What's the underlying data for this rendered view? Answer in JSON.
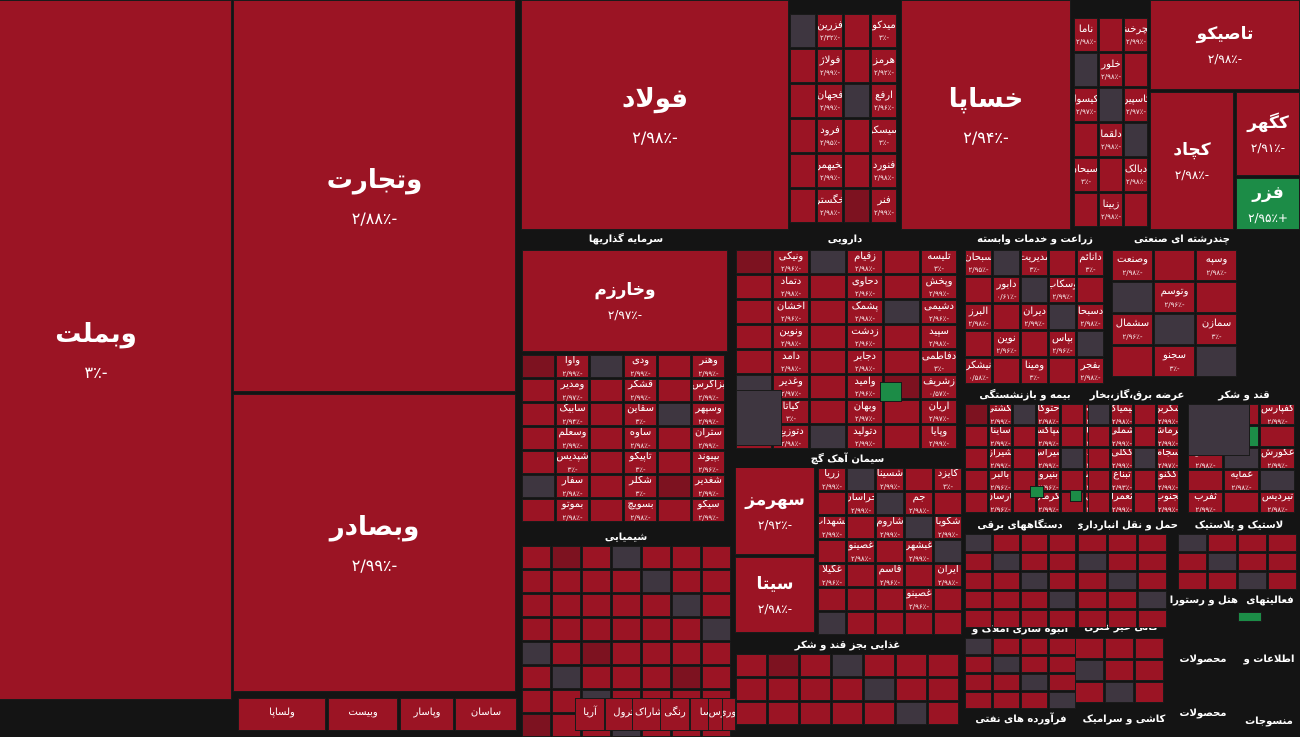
{
  "chart_data": {
    "type": "treemap",
    "title": "",
    "colors": {
      "negative": "#9b1424",
      "positive": "#1c8c47",
      "neutral": "#3e3640",
      "background": "#141414"
    },
    "sectors": [
      "سرمایه گذاریها",
      "دارویی",
      "زراعت و خدمات وابسته",
      "چندرشته ای صنعتی",
      "بیمه و بازنشستگی",
      "عرضه برق،گاز،بخار",
      "قند و شکر",
      "سیمان آهک گچ",
      "شیمیایی",
      "دستگاههای برقی",
      "حمل و نقل انبارداری",
      "لاستیک و پلاستیک",
      "انبوه سازی املاک و",
      "کانی غیر فلزی",
      "غذایی بجز قند و شکر",
      "هتل و رستوران",
      "فعالیتهای",
      "محصولات",
      "اطلاعات و",
      "فرآورده های نفتی",
      "کاشی و سرامیک",
      "محصولات",
      "منسوجات"
    ],
    "big_tiles": [
      {
        "symbol": "وبملت",
        "change": "-۳٪"
      },
      {
        "symbol": "وتجارت",
        "change": "-۲/۸۸٪"
      },
      {
        "symbol": "وبصادر",
        "change": "-۲/۹۹٪"
      },
      {
        "symbol": "فولاد",
        "change": "-۲/۹۸٪"
      },
      {
        "symbol": "خساپا",
        "change": "-۲/۹۴٪"
      },
      {
        "symbol": "تاصیکو",
        "change": "-۲/۹۸٪"
      },
      {
        "symbol": "کچاد",
        "change": "-۲/۹۸٪"
      },
      {
        "symbol": "کگهر",
        "change": "-۲/۹۱٪"
      },
      {
        "symbol": "فزر",
        "change": "+۲/۹۵٪"
      },
      {
        "symbol": "وخارزم",
        "change": "-۲/۹۷٪"
      },
      {
        "symbol": "سهرمز",
        "change": "-۲/۹۲٪"
      },
      {
        "symbol": "سیتا",
        "change": "-۲/۹۸٪"
      }
    ],
    "small_tiles": [
      {
        "symbol": "میدکو",
        "change": "-۳٪"
      },
      {
        "symbol": "فزرین",
        "change": "-۲/۳۲٪"
      },
      {
        "symbol": "هرمز",
        "change": "-۲/۹۲٪"
      },
      {
        "symbol": "فولاژ",
        "change": "-۲/۹۹٪"
      },
      {
        "symbol": "ارفع",
        "change": "-۲/۹۶٪"
      },
      {
        "symbol": "فجهان",
        "change": "-۲/۹۹٪"
      },
      {
        "symbol": "سیسکو",
        "change": "-۳٪"
      },
      {
        "symbol": "فرود",
        "change": "-۲/۹۵٪"
      },
      {
        "symbol": "فنورد",
        "change": "-۲/۹۸٪"
      },
      {
        "symbol": "فخیهمن",
        "change": "-۲/۹۹٪"
      },
      {
        "symbol": "فنر",
        "change": "-۲/۹۹٪"
      },
      {
        "symbol": "خگستر",
        "change": "-۲/۹۸٪"
      },
      {
        "symbol": "خچرخش",
        "change": "-۲/۹۹٪"
      },
      {
        "symbol": "ناما",
        "change": "-۲/۹۸٪"
      },
      {
        "symbol": "خلور",
        "change": "-۲/۹۸٪"
      },
      {
        "symbol": "کاسپین",
        "change": "-۲/۹۷٪"
      },
      {
        "symbol": "دکیسول",
        "change": "-۲/۹۷٪"
      },
      {
        "symbol": "دلقما",
        "change": "-۲/۹۸٪"
      },
      {
        "symbol": "دبالک",
        "change": "-۲/۹۸٪"
      },
      {
        "symbol": "دسبحان",
        "change": "-۳٪"
      },
      {
        "symbol": "زبینا",
        "change": "-۲/۹۸٪"
      },
      {
        "symbol": "تلیسه",
        "change": "-۳٪"
      },
      {
        "symbol": "زقیام",
        "change": "-۲/۹۸٪"
      },
      {
        "symbol": "ونیکی",
        "change": "-۲/۹۶٪"
      },
      {
        "symbol": "وپخش",
        "change": "-۲/۹۹٪"
      },
      {
        "symbol": "دحاوی",
        "change": "-۲/۹۶٪"
      },
      {
        "symbol": "دتماد",
        "change": "-۲/۹۸٪"
      },
      {
        "symbol": "دشیمی",
        "change": "-۲/۹۶٪"
      },
      {
        "symbol": "پشمک",
        "change": "-۲/۹۸٪"
      },
      {
        "symbol": "اخشان",
        "change": "-۲/۹۶٪"
      },
      {
        "symbol": "سپید",
        "change": "-۲/۹۸٪"
      },
      {
        "symbol": "زدشت",
        "change": "-۲/۹۶٪"
      },
      {
        "symbol": "ونوین",
        "change": "-۲/۹۸٪"
      },
      {
        "symbol": "دفاطمی",
        "change": "-۳٪"
      },
      {
        "symbol": "دجابر",
        "change": "-۲/۹۸٪"
      },
      {
        "symbol": "دامد",
        "change": "-۲/۹۸٪"
      },
      {
        "symbol": "زشریف",
        "change": "-۰/۵۷٪"
      },
      {
        "symbol": "وامید",
        "change": "-۲/۹۶٪"
      },
      {
        "symbol": "وغدیر",
        "change": "-۲/۹۷٪"
      },
      {
        "symbol": "آریان",
        "change": "-۲/۹۷٪"
      },
      {
        "symbol": "وبهان",
        "change": "-۲/۹۷٪"
      },
      {
        "symbol": "کیاتا",
        "change": "-۳٪"
      },
      {
        "symbol": "وپایا",
        "change": "-۲/۹۹٪"
      },
      {
        "symbol": "دتولید",
        "change": "-۲/۹۹٪"
      },
      {
        "symbol": "دتوزیع",
        "change": "-۲/۹۸٪"
      },
      {
        "symbol": "دانائم",
        "change": "-۳٪"
      },
      {
        "symbol": "مدیریت",
        "change": "-۳٪"
      },
      {
        "symbol": "سبحان",
        "change": "-۲/۹۵٪"
      },
      {
        "symbol": "وسکاب",
        "change": "-۲/۹۹٪"
      },
      {
        "symbol": "دابور",
        "change": "-۰/۶۱٪"
      },
      {
        "symbol": "دسبحا",
        "change": "-۲/۹۸٪"
      },
      {
        "symbol": "دیران",
        "change": "-۲/۹۹٪"
      },
      {
        "symbol": "البرز",
        "change": "-۲/۹۸٪"
      },
      {
        "symbol": "بپاس",
        "change": "-۲/۹۶٪"
      },
      {
        "symbol": "نوین",
        "change": "-۲/۹۶٪"
      },
      {
        "symbol": "بفجر",
        "change": "-۲/۹۸٪"
      },
      {
        "symbol": "ومینا",
        "change": "-۳٪"
      },
      {
        "symbol": "نیشکر",
        "change": "-۰/۵۸٪"
      },
      {
        "symbol": "وسپه",
        "change": "-۲/۹۸٪"
      },
      {
        "symbol": "وصنعت",
        "change": "-۲/۹۸٪"
      },
      {
        "symbol": "وتوسم",
        "change": "-۲/۹۶٪"
      },
      {
        "symbol": "سمازن",
        "change": "-۳٪"
      },
      {
        "symbol": "سشمال",
        "change": "-۲/۹۶٪"
      },
      {
        "symbol": "سجنو",
        "change": "-۳٪"
      },
      {
        "symbol": "وهنر",
        "change": "-۲/۹۹٪"
      },
      {
        "symbol": "ودی",
        "change": "-۲/۹۹٪"
      },
      {
        "symbol": "وآوا",
        "change": "-۲/۹۹٪"
      },
      {
        "symbol": "بزاگرس",
        "change": "-۲/۹۹٪"
      },
      {
        "symbol": "قشکر",
        "change": "-۲/۹۹٪"
      },
      {
        "symbol": "ومدیر",
        "change": "-۲/۹۷٪"
      },
      {
        "symbol": "وسپهر",
        "change": "-۲/۹۹٪"
      },
      {
        "symbol": "سقاین",
        "change": "-۳٪"
      },
      {
        "symbol": "سابیک",
        "change": "-۲/۹۴٪"
      },
      {
        "symbol": "ستران",
        "change": "-۲/۹۹٪"
      },
      {
        "symbol": "ساوه",
        "change": "-۲/۹۸٪"
      },
      {
        "symbol": "وسعلم",
        "change": "-۲/۹۹٪"
      },
      {
        "symbol": "بپیوند",
        "change": "-۲/۹۶٪"
      },
      {
        "symbol": "تاپیکو",
        "change": "-۳٪"
      },
      {
        "symbol": "شپدیس",
        "change": "-۳٪"
      },
      {
        "symbol": "شغدیر",
        "change": "-۲/۹۹٪"
      },
      {
        "symbol": "شکلر",
        "change": "-۳٪"
      },
      {
        "symbol": "سفار",
        "change": "-۲/۹۸٪"
      },
      {
        "symbol": "سیکو",
        "change": "-۲/۹۹٪"
      },
      {
        "symbol": "بسویچ",
        "change": "-۲/۹۸٪"
      },
      {
        "symbol": "بموتو",
        "change": "-۲/۹۸٪"
      },
      {
        "symbol": "بکاب",
        "change": "-۲/۹۸٪"
      },
      {
        "symbol": "حتوکا",
        "change": "-۲/۹۸٪"
      },
      {
        "symbol": "بکشتی",
        "change": "-۲/۹۹٪"
      },
      {
        "symbol": "حاسا",
        "change": "-۲/۹۷٪"
      },
      {
        "symbol": "شپاکسا",
        "change": "-۲/۹۹٪"
      },
      {
        "symbol": "ساینا",
        "change": "-۲/۹۹٪"
      },
      {
        "symbol": "شوینده",
        "change": "-۲/۹۹٪"
      },
      {
        "symbol": "شیراس",
        "change": "-۲/۹۹٪"
      },
      {
        "symbol": "شیراز",
        "change": "-۲/۹۹٪"
      },
      {
        "symbol": "سفارس",
        "change": "-۲/۹۹٪"
      },
      {
        "symbol": "بنیرو",
        "change": "-۲/۹۶٪"
      },
      {
        "symbol": "بالبر",
        "change": "-۲/۹۶٪"
      },
      {
        "symbol": "حریل",
        "change": "-۲/۹۶٪"
      },
      {
        "symbol": "پکرمان",
        "change": "-۲/۹۹٪"
      },
      {
        "symbol": "پارسان",
        "change": "-۲/۹۶٪"
      },
      {
        "symbol": "شکربن",
        "change": "-۲/۹۹٪"
      },
      {
        "symbol": "کیمیاگ",
        "change": "-۲/۹۸٪"
      },
      {
        "symbol": "کرماشا",
        "change": "-۲/۹۹٪"
      },
      {
        "symbol": "شملی",
        "change": "-۲/۹۹٪"
      },
      {
        "symbol": "سجام",
        "change": "-۲/۹۷٪"
      },
      {
        "symbol": "کگلی",
        "change": "-۲/۹۹٪"
      },
      {
        "symbol": "کگنو",
        "change": "-۲/۹۹٪"
      },
      {
        "symbol": "تبناغ",
        "change": "-۲/۹۳٪"
      },
      {
        "symbol": "ثجنوب",
        "change": "-۲/۹۹٪"
      },
      {
        "symbol": "ثعمرا",
        "change": "-۲/۹۹٪"
      },
      {
        "symbol": "کفپارس",
        "change": "-۲/۹۹٪"
      },
      {
        "symbol": "غشاذر",
        "change": "-۲/۹۳٪"
      },
      {
        "symbol": "نان",
        "change": "+۳٪"
      },
      {
        "symbol": "غکورش",
        "change": "-۲/۹۹٪"
      },
      {
        "symbol": "غشان",
        "change": "-۲/۹۸٪"
      },
      {
        "symbol": "غمایه",
        "change": "-۲/۹۸٪"
      },
      {
        "symbol": "تیردیس",
        "change": "-۲/۹۸٪"
      },
      {
        "symbol": "ثفرب",
        "change": "-۲/۹۹٪"
      },
      {
        "symbol": "کایزد",
        "change": "-۳٪"
      },
      {
        "symbol": "شسینا",
        "change": "-۲/۹۹٪"
      },
      {
        "symbol": "زریا",
        "change": "-۲/۹۹٪"
      },
      {
        "symbol": "جم",
        "change": "-۲/۹۸٪"
      },
      {
        "symbol": "خراسان",
        "change": "-۲/۹۹٪"
      },
      {
        "symbol": "شکوبا",
        "change": "-۲/۹۹٪"
      },
      {
        "symbol": "شاروم",
        "change": "-۲/۹۹٪"
      },
      {
        "symbol": "غشهداب",
        "change": "-۲/۹۹٪"
      },
      {
        "symbol": "غبشهر",
        "change": "-۲/۹۹٪"
      },
      {
        "symbol": "غصینو",
        "change": "-۲/۹۸٪"
      },
      {
        "symbol": "ایران",
        "change": "-۲/۹۸٪"
      },
      {
        "symbol": "قاسم",
        "change": "-۲/۹۶٪"
      },
      {
        "symbol": "غگیلا",
        "change": "-۲/۹۶٪"
      },
      {
        "symbol": "غصینو",
        "change": "-۲/۹۶٪"
      }
    ]
  },
  "tail_labels": [
    "ولساپا",
    "وبیست",
    "ساسان",
    "وپاسار",
    "آریا",
    "لابسا",
    "پترول",
    "شاراک",
    "رنگی",
    "فارس",
    "نوری"
  ]
}
